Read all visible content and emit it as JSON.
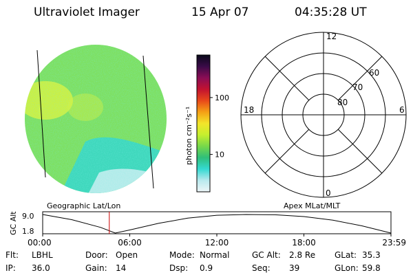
{
  "header": {
    "title": "Ultraviolet Imager",
    "date": "15 Apr 07",
    "time": "04:35:28 UT"
  },
  "colors": {
    "disk_base": "#7ee060",
    "bright": "#d9f23c",
    "cyan": "#33d6cc",
    "pale": "#c8eef0",
    "scale_stops": [
      "#eef6f8",
      "#b9e9ee",
      "#35d9d2",
      "#2fbf7a",
      "#77d84a",
      "#c6ef2e",
      "#f3e52a",
      "#f5a015",
      "#e8481a",
      "#c21230",
      "#8a0d55",
      "#3a0b48",
      "#0a0a1a"
    ],
    "marker": "#cc0000"
  },
  "colorbar": {
    "ticks": [
      {
        "label": "100",
        "value": 100
      },
      {
        "label": "10",
        "value": 10
      }
    ],
    "unit_label": "photon cm⁻²s⁻¹"
  },
  "polar": {
    "mlt_labels": [
      "12",
      "18",
      "6",
      "0"
    ],
    "lat_labels": [
      "60",
      "70",
      "80"
    ],
    "rings_mlat": [
      50,
      60,
      70,
      80
    ]
  },
  "labels": {
    "left_panel": "Geographic Lat/Lon",
    "right_panel": "Apex MLat/MLT"
  },
  "chart_data": {
    "type": "line",
    "title": "",
    "ylabel": "GC Alt",
    "y_ticks": [
      "9.0",
      "1.8"
    ],
    "ylim": [
      1.8,
      9.0
    ],
    "x_ticks": [
      "00:00",
      "06:00",
      "12:00",
      "18:00",
      "23:59"
    ],
    "x_hours": [
      0,
      2,
      4,
      5,
      6,
      8,
      10,
      12,
      14,
      16,
      18,
      20,
      22,
      24
    ],
    "series": [
      {
        "values": [
          9.0,
          7.0,
          4.0,
          1.8,
          3.0,
          5.6,
          7.6,
          8.7,
          9.0,
          8.9,
          8.2,
          6.8,
          4.6,
          1.8
        ]
      }
    ],
    "current_time_hours": 4.59
  },
  "status": {
    "row1": [
      {
        "key": "Flt:",
        "val": "LBHL"
      },
      {
        "key": "Door:",
        "val": "Open"
      },
      {
        "key": "Mode:",
        "val": "Normal"
      },
      {
        "key": "GC Alt:",
        "val": "2.8 Re"
      },
      {
        "key": "GLat:",
        "val": "35.3"
      }
    ],
    "row2": [
      {
        "key": "IP:",
        "val": "36.0"
      },
      {
        "key": "Gain:",
        "val": "14"
      },
      {
        "key": "Dsp:",
        "val": "0.9"
      },
      {
        "key": "Seq:",
        "val": "39"
      },
      {
        "key": "GLon:",
        "val": "59.8"
      }
    ]
  }
}
